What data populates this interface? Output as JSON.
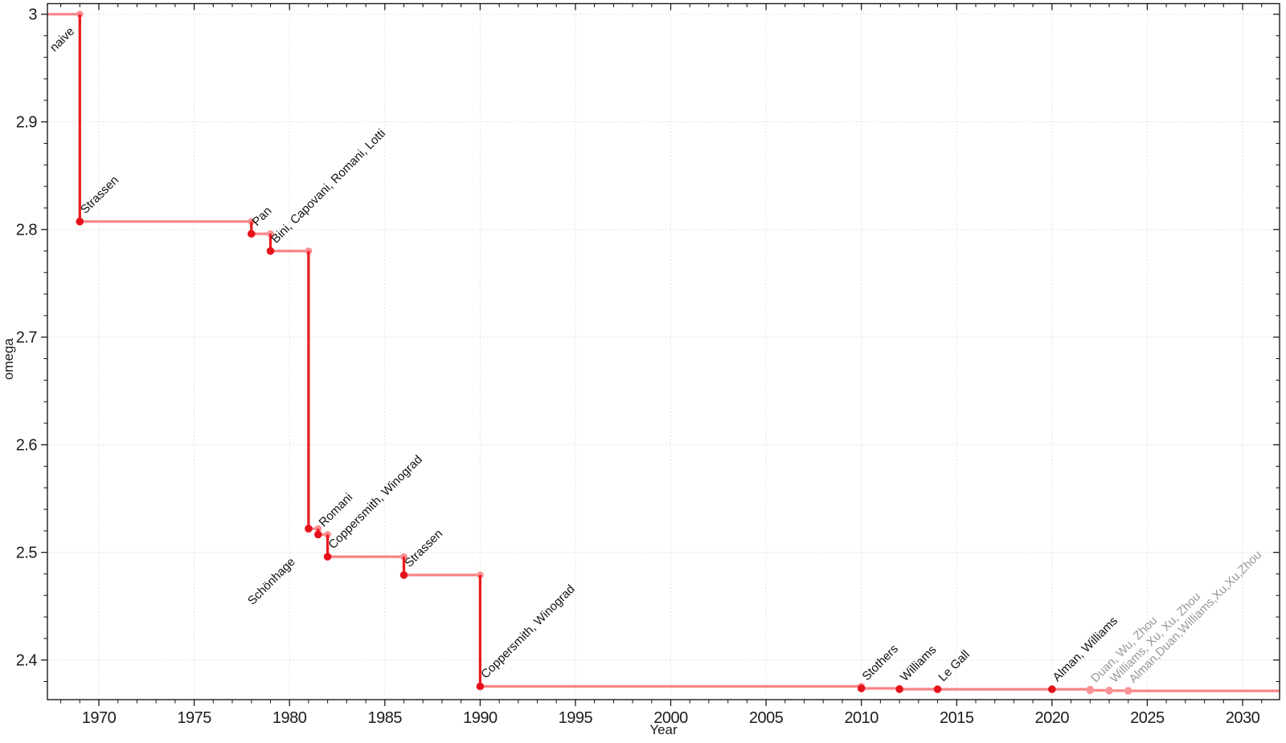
{
  "page": {
    "background": "#ffffff"
  },
  "chart_data": {
    "type": "line",
    "line_style": "step-post",
    "title": "",
    "xlabel": "Year",
    "ylabel": "omega",
    "xlim": [
      1967.3,
      2031.94
    ],
    "ylim": [
      2.36322,
      3.00985
    ],
    "x_major_ticks": [
      1970,
      1975,
      1980,
      1985,
      1990,
      1995,
      2000,
      2005,
      2010,
      2015,
      2020,
      2025,
      2030
    ],
    "x_minor_tick_step": 1,
    "y_major_ticks": [
      2.4,
      2.5,
      2.6,
      2.7,
      2.8,
      2.9,
      3.0
    ],
    "y_tick_labels": [
      "2.4",
      "2.5",
      "2.6",
      "2.7",
      "2.8",
      "2.9",
      "3"
    ],
    "y_minor_tick_step": 0.02,
    "grid": "dotted-major",
    "legend": "none",
    "line_extends_to_plot_edges": true,
    "start": {
      "omega": 3,
      "label": "naive",
      "label_placement": "below-left",
      "label_offset": [
        -6,
        22
      ]
    },
    "points": [
      {
        "year": 1969,
        "omega": 2.8074,
        "label": "Strassen"
      },
      {
        "year": 1978,
        "omega": 2.796,
        "label": "Pan"
      },
      {
        "year": 1979,
        "omega": 2.78,
        "label": "Bini, Capovani, Romani, Lotti"
      },
      {
        "year": 1981,
        "omega": 2.522,
        "label": "Schönhage",
        "label_placement": "below-left",
        "label_offset": [
          -16,
          42
        ]
      },
      {
        "year": 1981.5,
        "omega": 2.5166,
        "label": "Romani"
      },
      {
        "year": 1982,
        "omega": 2.496,
        "label": "Coppersmith, Winograd"
      },
      {
        "year": 1986,
        "omega": 2.479,
        "label": "Strassen"
      },
      {
        "year": 1990,
        "omega": 2.3755,
        "label": "Coppersmith, Winograd"
      },
      {
        "year": 2010,
        "omega": 2.3737,
        "label": "Stothers"
      },
      {
        "year": 2012,
        "omega": 2.3729,
        "label": "Williams"
      },
      {
        "year": 2014,
        "omega": 2.3728639,
        "label": "Le Gall"
      },
      {
        "year": 2020,
        "omega": 2.3728596,
        "label": "Alman, Williams"
      },
      {
        "year": 2022,
        "omega": 2.37188,
        "label": "Duan, Wu, Zhou",
        "recent": true
      },
      {
        "year": 2023,
        "omega": 2.371552,
        "label": "Williams, Xu, Xu, Zhou",
        "recent": true
      },
      {
        "year": 2024,
        "omega": 2.371339,
        "label": "Alman,Duan,Williams,Xu,Xu,Zhou",
        "recent": true
      }
    ],
    "colors": {
      "step_line": "#fa8487",
      "corner_marker": "#fa9093",
      "drop_line": "#ec1b21",
      "value_marker": "#e6121b",
      "recent_marker": "#f99396",
      "label": "#111111",
      "recent_label": "#989898",
      "grid": "#d9d9d9",
      "axis": "#1c1c1c"
    }
  }
}
